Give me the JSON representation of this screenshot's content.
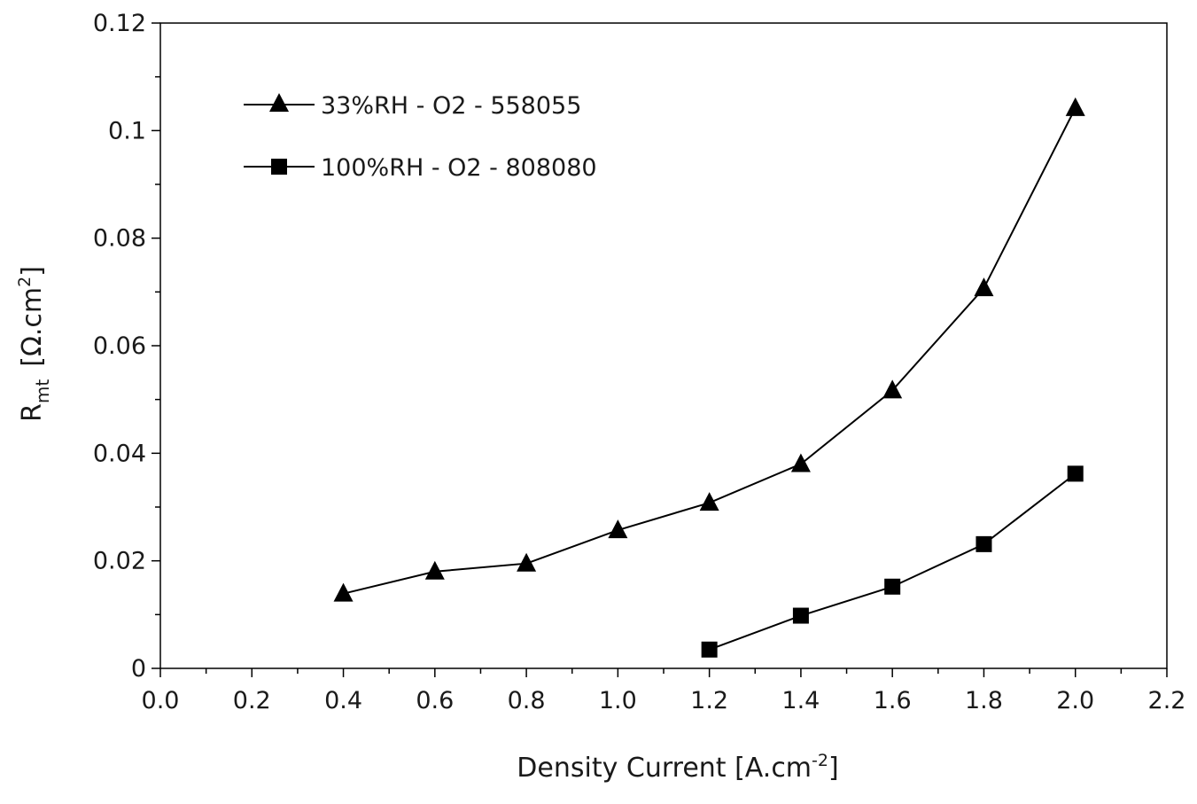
{
  "chart_data": {
    "type": "line",
    "xlabel": {
      "text": "Density Current [A.cm",
      "superscript": "-2",
      "suffix": "]"
    },
    "ylabel": {
      "main": "R",
      "subscript": "mt",
      "unit": "[Ω.cm",
      "superscript": "2",
      "suffix": "]"
    },
    "xlim": [
      0.0,
      2.2
    ],
    "ylim": [
      0,
      0.12
    ],
    "x_ticks": [
      "0.0",
      "0.2",
      "0.4",
      "0.6",
      "0.8",
      "1.0",
      "1.2",
      "1.4",
      "1.6",
      "1.8",
      "2.0",
      "2.2"
    ],
    "x_tick_values": [
      0.0,
      0.2,
      0.4,
      0.6,
      0.8,
      1.0,
      1.2,
      1.4,
      1.6,
      1.8,
      2.0,
      2.2
    ],
    "y_ticks": [
      "0",
      "0.02",
      "0.04",
      "0.06",
      "0.08",
      "0.1",
      "0.12"
    ],
    "y_tick_values": [
      0,
      0.02,
      0.04,
      0.06,
      0.08,
      0.1,
      0.12
    ],
    "grid": false,
    "legend_position": "top-left",
    "color": "#000000",
    "series": [
      {
        "name": "33%RH - O2 - 558055",
        "marker": "triangle",
        "x": [
          0.4,
          0.6,
          0.8,
          1.0,
          1.2,
          1.4,
          1.6,
          1.8,
          2.0
        ],
        "y": [
          0.0139,
          0.018,
          0.0195,
          0.0257,
          0.0308,
          0.038,
          0.0517,
          0.0707,
          0.1042
        ]
      },
      {
        "name": "100%RH - O2 - 808080",
        "marker": "square",
        "x": [
          1.2,
          1.4,
          1.6,
          1.8,
          2.0
        ],
        "y": [
          0.0035,
          0.0098,
          0.0152,
          0.0231,
          0.0362
        ]
      }
    ]
  }
}
